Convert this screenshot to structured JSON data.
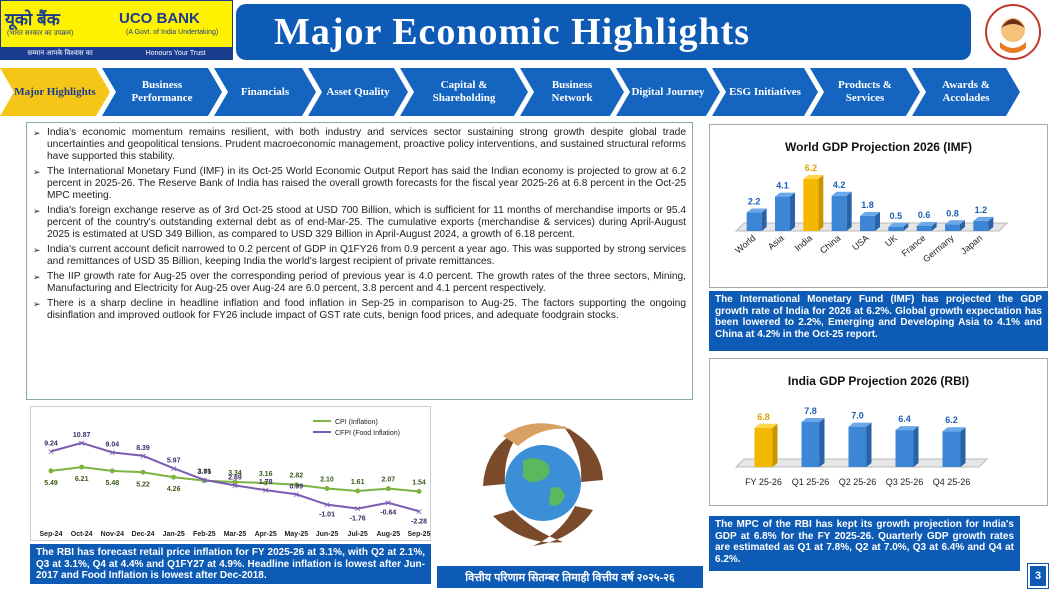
{
  "logo": {
    "hindi": "यूको बैंक",
    "name": "UCO BANK",
    "govt": "(A Govt. of India Undertaking)",
    "hindi_sub": "(भारत सरकार का उपक्रम)",
    "tagline_hi": "सम्मान आपके विश्वास का",
    "tagline_en": "Honours Your Trust"
  },
  "title": "Major Economic Highlights",
  "nav": [
    "Major Highlights",
    "Business Performance",
    "Financials",
    "Asset Quality",
    "Capital & Shareholding",
    "Business Network",
    "Digital Journey",
    "ESG Initiatives",
    "Products & Services",
    "Awards & Accolades"
  ],
  "bullets": [
    "India's economic momentum remains resilient, with both industry and services sector sustaining strong growth despite global trade uncertainties and geopolitical tensions. Prudent macroeconomic management, proactive policy interventions, and sustained structural reforms have supported this stability.",
    "The International Monetary Fund (IMF) in its Oct-25 World Economic Output Report has said the Indian economy is projected to grow at 6.2 percent in 2025-26. The Reserve Bank of India has raised the overall growth forecasts for the fiscal year 2025-26 at 6.8 percent in the Oct-25 MPC meeting.",
    "India's foreign exchange reserve as of 3rd Oct-25 stood at USD 700 Billion, which is sufficient for 11 months of merchandise imports or 95.4 percent of the country's outstanding external debt as of end-Mar-25. The cumulative exports (merchandise & services) during April-August 2025 is estimated at USD 349 Billion, as compared to USD 329 Billion in April-August 2024, a growth of 6.18 percent.",
    "India's current account deficit narrowed to 0.2 percent of GDP in Q1FY26 from 0.9 percent a year ago. This was supported by strong services and remittances of USD 35 Billion, keeping India the world's largest recipient of private remittances.",
    "The IIP growth rate for Aug-25 over the corresponding period of previous year is 4.0 percent. The growth rates of the three sectors, Mining, Manufacturing and Electricity for Aug-25 over Aug-24 are 6.0 percent, 3.8 percent and 4.1 percent respectively.",
    "There is a sharp decline in headline inflation and food inflation in Sep-25 in comparison to Aug-25. The factors supporting the ongoing disinflation and improved outlook for FY26 include impact of GST rate cuts, benign food prices, and adequate foodgrain stocks."
  ],
  "cpi_note": "The RBI has forecast retail price inflation for FY 2025-26 at 3.1%, with Q2 at 2.1%, Q3 at 3.1%, Q4 at 4.4% and Q1FY27 at 4.9%. Headline inflation is lowest after Jun-2017 and Food Inflation is lowest after Dec-2018.",
  "world_note": "The International Monetary Fund (IMF) has projected the GDP growth rate of India for 2026 at 6.2%. Global growth expectation has been lowered to 2.2%, Emerging and Developing Asia to 4.1% and China at 4.2% in the Oct-25 report.",
  "india_note": "The MPC of the RBI has kept its growth projection for India's GDP at 6.8% for the FY 2025-26. Quarterly GDP growth rates are estimated as Q1 at 7.8%, Q2 at 7.0%, Q3 at 6.4% and Q4 at 6.2%.",
  "hindi_bar": "वित्तीय परिणाम सितम्बर तिमाही वित्तीय वर्ष २०२५-२६",
  "page": "3",
  "chart_data": [
    {
      "type": "line",
      "x": [
        "Sep-24",
        "Oct-24",
        "Nov-24",
        "Dec-24",
        "Jan-25",
        "Feb-25",
        "Mar-25",
        "Apr-25",
        "May-25",
        "Jun-25",
        "Jul-25",
        "Aug-25",
        "Sep-25"
      ],
      "series": [
        {
          "name": "CPI (Inflation)",
          "color": "#7cb342",
          "values": [
            5.49,
            6.21,
            5.48,
            5.22,
            4.26,
            3.61,
            3.34,
            3.16,
            2.82,
            2.1,
            1.61,
            2.07,
            1.54
          ]
        },
        {
          "name": "CFPI (Food Inflation)",
          "color": "#7b5cb0",
          "values": [
            9.24,
            10.87,
            9.04,
            8.39,
            5.97,
            3.75,
            2.69,
            1.78,
            0.99,
            -1.01,
            -1.76,
            -0.64,
            -2.28
          ]
        }
      ]
    },
    {
      "type": "bar",
      "title": "World GDP Projection 2026 (IMF)",
      "categories": [
        "World",
        "Asia",
        "India",
        "China",
        "USA",
        "UK",
        "France",
        "Germany",
        "Japan"
      ],
      "values": [
        2.2,
        4.1,
        6.2,
        4.2,
        1.8,
        0.5,
        0.6,
        0.8,
        1.2
      ],
      "highlight": "India",
      "labels": [
        "2.2",
        "4.1",
        "6.2",
        "4.2",
        "1.8",
        "0.5",
        "0.6",
        "0.8",
        "1.2"
      ]
    },
    {
      "type": "bar",
      "title": "India GDP Projection 2026 (RBI)",
      "categories": [
        "FY 25-26",
        "Q1 25-26",
        "Q2 25-26",
        "Q3 25-26",
        "Q4 25-26"
      ],
      "values": [
        6.8,
        7.8,
        7.0,
        6.4,
        6.2
      ],
      "highlight": "FY 25-26",
      "labels": [
        "6.8",
        "7.8",
        "7.0",
        "6.4",
        "6.2"
      ]
    }
  ]
}
